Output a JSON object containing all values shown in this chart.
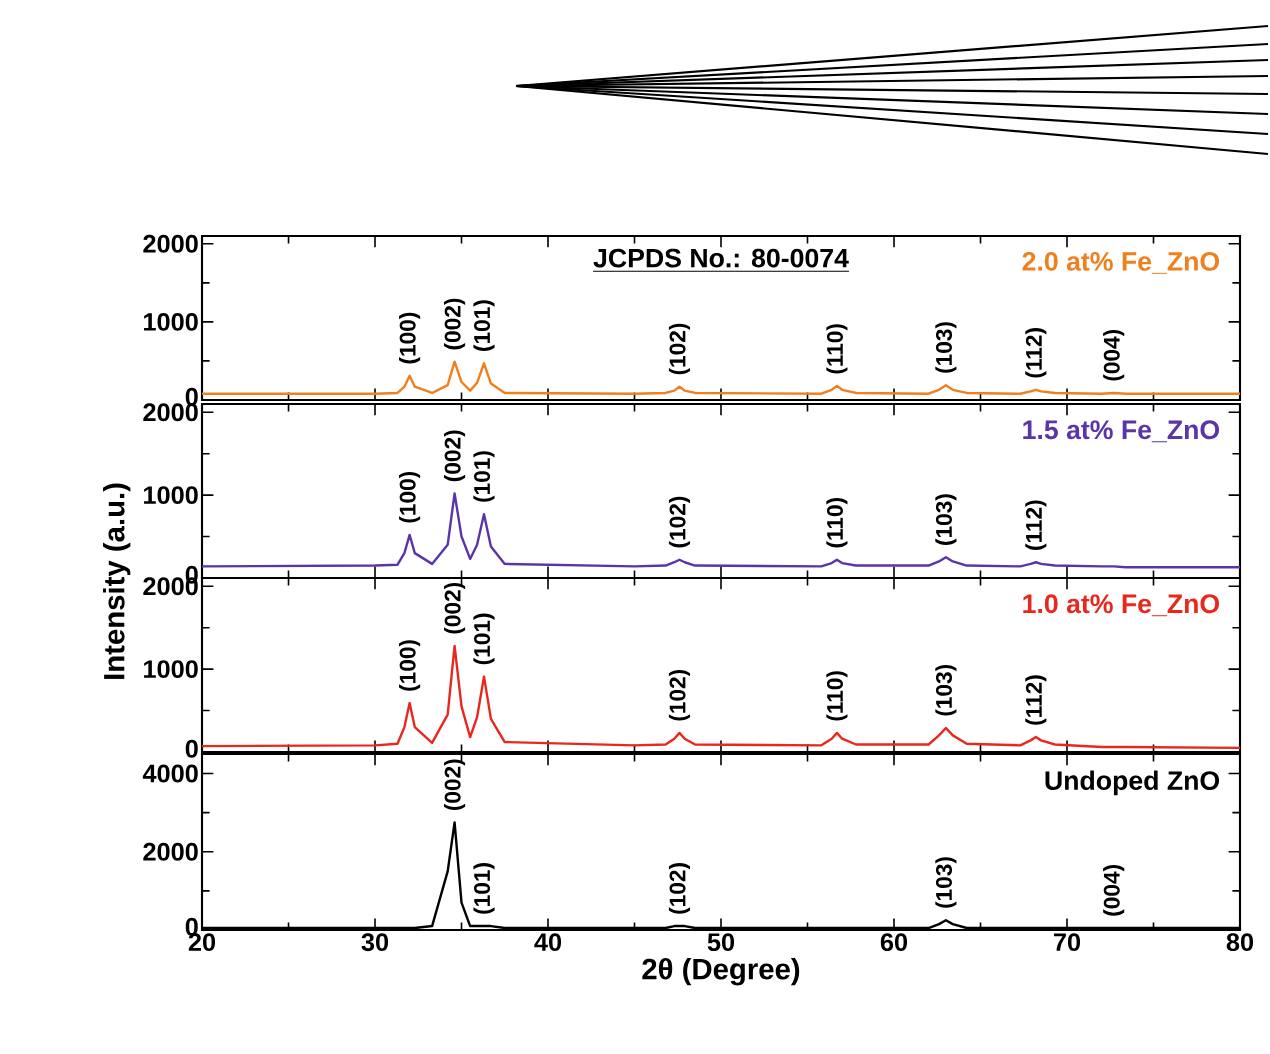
{
  "chart_data": [
    {
      "type": "line",
      "xlim": [
        20,
        80
      ],
      "ylim": [
        0,
        2100
      ],
      "xticks": [
        20,
        30,
        40,
        50,
        60,
        70,
        80
      ],
      "yticks": [
        0,
        1000,
        2000
      ],
      "tick_labels": "y",
      "x": [
        20,
        30,
        31.3,
        31.7,
        32.0,
        32.3,
        33.3,
        34.2,
        34.6,
        35.0,
        35.5,
        35.9,
        36.3,
        36.7,
        37.5,
        45,
        46.8,
        47.3,
        47.6,
        47.9,
        48.5,
        55.8,
        56.4,
        56.7,
        57.0,
        57.8,
        62.0,
        62.6,
        63.0,
        63.4,
        64.2,
        67.3,
        67.9,
        68.2,
        68.5,
        69.3,
        72,
        72.7,
        73.4,
        80
      ],
      "series": [
        {
          "name": "2.0 at% Fe_ZnO",
          "color": "#f07f1e",
          "values": [
            80,
            80,
            90,
            170,
            310,
            170,
            90,
            190,
            490,
            230,
            120,
            220,
            470,
            210,
            90,
            80,
            90,
            120,
            170,
            120,
            90,
            80,
            130,
            180,
            130,
            90,
            80,
            130,
            190,
            130,
            90,
            80,
            110,
            130,
            110,
            90,
            80,
            90,
            80,
            80
          ]
        }
      ],
      "annotations": [
        "JCPDS No.: 80-0074",
        {
          "text": "(100)",
          "x": 32.0,
          "y": 310
        },
        {
          "text": "(002)",
          "x": 34.6,
          "y": 490
        },
        {
          "text": "(101)",
          "x": 36.3,
          "y": 470
        },
        {
          "text": "(102)",
          "x": 47.6,
          "y": 170
        },
        {
          "text": "(110)",
          "x": 56.7,
          "y": 180
        },
        {
          "text": "(103)",
          "x": 63.0,
          "y": 190
        },
        {
          "text": "(112)",
          "x": 68.2,
          "y": 130
        },
        {
          "text": "(004)",
          "x": 72.7,
          "y": 90
        }
      ]
    },
    {
      "type": "line",
      "xlim": [
        20,
        80
      ],
      "ylim": [
        0,
        2100
      ],
      "xticks": [
        20,
        30,
        40,
        50,
        60,
        70,
        80
      ],
      "yticks": [
        0,
        1000,
        2000
      ],
      "tick_labels": "y",
      "ylabel": "Intensity (a.u.)",
      "x": [
        20,
        30,
        31.3,
        31.7,
        32.0,
        32.3,
        33.3,
        34.2,
        34.6,
        35.0,
        35.5,
        35.9,
        36.3,
        36.7,
        37.5,
        45,
        46.8,
        47.3,
        47.6,
        47.9,
        48.5,
        55.8,
        56.4,
        56.7,
        57.0,
        57.8,
        62.0,
        62.6,
        63.0,
        63.4,
        64.2,
        67.3,
        67.9,
        68.2,
        68.5,
        69.3,
        72,
        72.7,
        73.4,
        80
      ],
      "series": [
        {
          "name": "1.5 at% Fe_ZnO",
          "color": "#5a35a8",
          "values": [
            140,
            150,
            160,
            300,
            520,
            300,
            170,
            400,
            1020,
            500,
            230,
            400,
            770,
            380,
            170,
            140,
            150,
            190,
            220,
            190,
            150,
            140,
            180,
            220,
            180,
            150,
            150,
            200,
            250,
            200,
            150,
            140,
            170,
            190,
            170,
            150,
            140,
            140,
            130,
            130
          ]
        }
      ],
      "annotations": [
        {
          "text": "(100)",
          "x": 32.0,
          "y": 520
        },
        {
          "text": "(002)",
          "x": 34.6,
          "y": 1020
        },
        {
          "text": "(101)",
          "x": 36.3,
          "y": 770
        },
        {
          "text": "(102)",
          "x": 47.6,
          "y": 220
        },
        {
          "text": "(110)",
          "x": 56.7,
          "y": 220
        },
        {
          "text": "(103)",
          "x": 63.0,
          "y": 250
        },
        {
          "text": "(112)",
          "x": 68.2,
          "y": 190
        }
      ]
    },
    {
      "type": "line",
      "xlim": [
        20,
        80
      ],
      "ylim": [
        0,
        2100
      ],
      "xticks": [
        20,
        30,
        40,
        50,
        60,
        70,
        80
      ],
      "yticks": [
        0,
        1000,
        2000
      ],
      "tick_labels": "y",
      "x": [
        20,
        30,
        31.3,
        31.7,
        32.0,
        32.3,
        33.3,
        34.2,
        34.6,
        35.0,
        35.5,
        35.9,
        36.3,
        36.7,
        37.5,
        45,
        46.8,
        47.3,
        47.6,
        47.9,
        48.5,
        55.8,
        56.4,
        56.7,
        57.0,
        57.8,
        62.0,
        62.6,
        63.0,
        63.4,
        64.2,
        67.3,
        67.9,
        68.2,
        68.5,
        69.3,
        72,
        72.7,
        73.4,
        80
      ],
      "series": [
        {
          "name": "1.0 at% Fe_ZnO",
          "color": "#e8281e",
          "values": [
            70,
            80,
            100,
            300,
            590,
            300,
            110,
            450,
            1280,
            550,
            180,
            420,
            910,
            400,
            120,
            80,
            90,
            160,
            230,
            160,
            90,
            80,
            160,
            230,
            160,
            90,
            90,
            200,
            290,
            200,
            100,
            80,
            140,
            180,
            140,
            90,
            60,
            60,
            60,
            50
          ]
        }
      ],
      "annotations": [
        {
          "text": "(100)",
          "x": 32.0,
          "y": 590
        },
        {
          "text": "(002)",
          "x": 34.6,
          "y": 1280
        },
        {
          "text": "(101)",
          "x": 36.3,
          "y": 910
        },
        {
          "text": "(102)",
          "x": 47.6,
          "y": 230
        },
        {
          "text": "(110)",
          "x": 56.7,
          "y": 230
        },
        {
          "text": "(103)",
          "x": 63.0,
          "y": 290
        },
        {
          "text": "(112)",
          "x": 68.2,
          "y": 180
        }
      ]
    },
    {
      "type": "line",
      "xlim": [
        20,
        80
      ],
      "ylim": [
        0,
        4500
      ],
      "xticks": [
        20,
        30,
        40,
        50,
        60,
        70,
        80
      ],
      "yticks": [
        0,
        2000,
        4000
      ],
      "xlabel": "2θ (Degree)",
      "x": [
        20,
        30,
        31.3,
        31.7,
        32.0,
        32.3,
        33.3,
        34.2,
        34.6,
        35.0,
        35.5,
        35.9,
        36.3,
        36.7,
        37.5,
        45,
        46.8,
        47.3,
        47.6,
        47.9,
        48.5,
        55.8,
        56.4,
        56.7,
        57.0,
        57.8,
        62.0,
        62.6,
        63.0,
        63.4,
        64.2,
        67.3,
        67.9,
        68.2,
        68.5,
        69.3,
        72,
        72.7,
        73.4,
        80
      ],
      "series": [
        {
          "name": "Undoped  ZnO",
          "color": "#000000",
          "values": [
            50,
            50,
            50,
            50,
            50,
            50,
            100,
            1500,
            2750,
            700,
            100,
            100,
            100,
            100,
            50,
            50,
            50,
            100,
            100,
            100,
            50,
            50,
            50,
            50,
            50,
            50,
            50,
            150,
            250,
            150,
            50,
            50,
            50,
            50,
            50,
            50,
            50,
            50,
            50,
            50
          ]
        }
      ],
      "annotations": [
        {
          "text": "(002)",
          "x": 34.6,
          "y": 2750
        },
        {
          "text": "(101)",
          "x": 36.3,
          "y": 100
        },
        {
          "text": "(102)",
          "x": 47.6,
          "y": 100
        },
        {
          "text": "(103)",
          "x": 63.0,
          "y": 250
        },
        {
          "text": "(004)",
          "x": 72.7,
          "y": 50
        }
      ]
    }
  ]
}
